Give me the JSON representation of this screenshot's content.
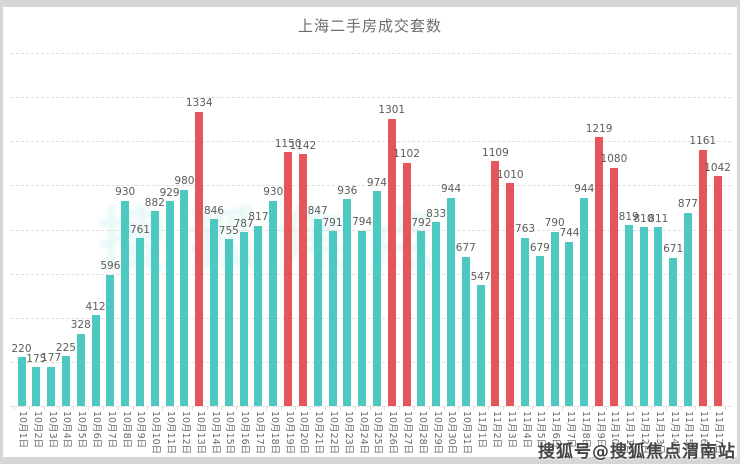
{
  "watermarks": {
    "center": "搜狐焦点",
    "bottom": "搜狐号@搜狐焦点渭南站"
  },
  "colors": {
    "teal_bar": "#4ec9c1",
    "red_bar": "#e4565a",
    "grid": "#e6dcdc",
    "title_text": "#6e6e6e",
    "value_label": "#5c5c5c",
    "axis_label": "#6a6a6a",
    "page_bg": "#d6d6d6",
    "chart_bg": "#ffffff",
    "center_watermark": "rgba(78,201,193,0.13)"
  },
  "chart_data": {
    "type": "bar",
    "title": "上海二手房成交套数",
    "categories": [
      "10月1日",
      "10月2日",
      "10月3日",
      "10月4日",
      "10月5日",
      "10月6日",
      "10月7日",
      "10月8日",
      "10月9日",
      "10月10日",
      "10月11日",
      "10月12日",
      "10月13日",
      "10月14日",
      "10月15日",
      "10月16日",
      "10月17日",
      "10月18日",
      "10月19日",
      "10月20日",
      "10月21日",
      "10月22日",
      "10月23日",
      "10月24日",
      "10月25日",
      "10月26日",
      "10月27日",
      "10月28日",
      "10月29日",
      "10月30日",
      "10月31日",
      "11月1日",
      "11月2日",
      "11月3日",
      "11月4日",
      "11月5日",
      "11月6日",
      "11月7日",
      "11月8日",
      "11月9日",
      "11月10日",
      "11月11日",
      "11月12日",
      "11月13日",
      "11月14日",
      "11月15日",
      "11月16日",
      "11月17日"
    ],
    "values": [
      220,
      175,
      177,
      225,
      328,
      412,
      596,
      930,
      761,
      882,
      929,
      980,
      1334,
      846,
      755,
      787,
      817,
      930,
      1150,
      1142,
      847,
      791,
      936,
      794,
      974,
      1301,
      1102,
      792,
      833,
      944,
      677,
      547,
      1109,
      1010,
      763,
      679,
      790,
      744,
      944,
      1219,
      1080,
      819,
      810,
      811,
      671,
      877,
      1161,
      1042
    ],
    "xlabel": "",
    "ylabel": "",
    "ylim": [
      0,
      1600
    ],
    "grid_step": 200,
    "grid_style": "dashed",
    "y_axis_tick_labels_visible": false,
    "value_labels_visible": true,
    "legend": "none",
    "red_threshold": 1000,
    "color_rule": "values >= 1000 red, otherwise teal"
  }
}
